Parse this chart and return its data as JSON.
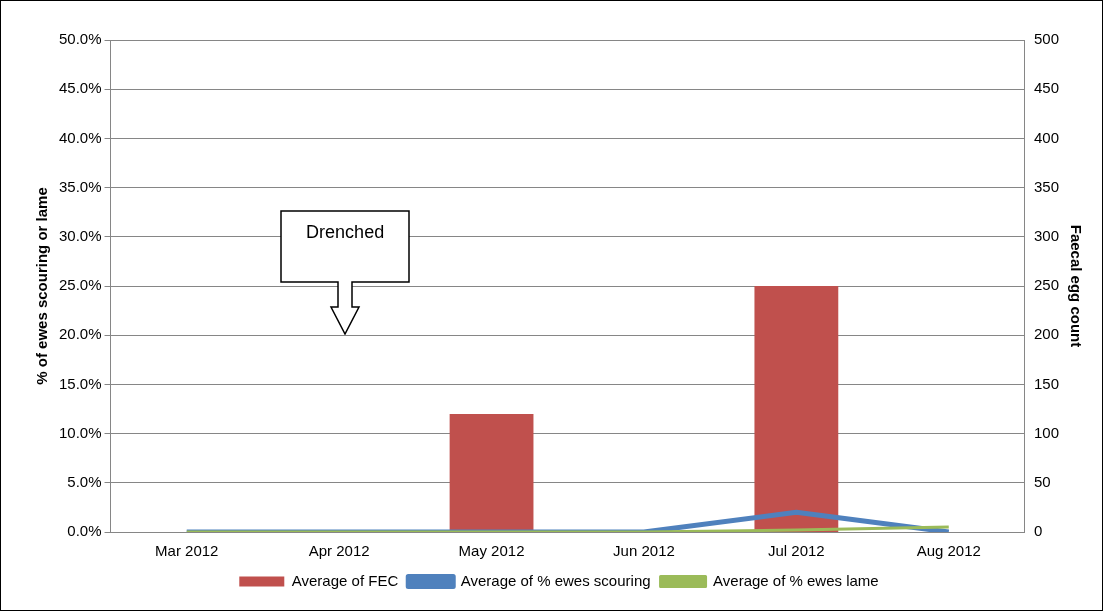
{
  "chart_data": {
    "type": "bar",
    "categories": [
      "Mar 2012",
      "Apr 2012",
      "May 2012",
      "Jun 2012",
      "Jul 2012",
      "Aug 2012"
    ],
    "series": [
      {
        "name": "Average of FEC",
        "axis": "y2",
        "color": "#c0504d",
        "values": [
          0,
          0,
          120,
          0,
          250,
          0
        ]
      },
      {
        "name": "Average of % ewes scouring",
        "type": "line",
        "axis": "y",
        "color": "#4f81bd",
        "values": [
          0,
          0,
          0,
          0,
          2.0,
          0
        ]
      },
      {
        "name": "Average of % ewes lame",
        "type": "line",
        "axis": "y",
        "color": "#9bbb59",
        "values": [
          0,
          0,
          0,
          0,
          0.2,
          0.5
        ]
      }
    ],
    "ylabel": "% of ewes scouring or lame",
    "y2label": "Faecal egg count",
    "ylim": [
      0,
      50
    ],
    "yticks": [
      {
        "value": 0,
        "label": "0.0%"
      },
      {
        "value": 5,
        "label": "5.0%"
      },
      {
        "value": 10,
        "label": "10.0%"
      },
      {
        "value": 15,
        "label": "15.0%"
      },
      {
        "value": 20,
        "label": "20.0%"
      },
      {
        "value": 25,
        "label": "25.0%"
      },
      {
        "value": 30,
        "label": "30.0%"
      },
      {
        "value": 35,
        "label": "35.0%"
      },
      {
        "value": 40,
        "label": "40.0%"
      },
      {
        "value": 45,
        "label": "45.0%"
      },
      {
        "value": 50,
        "label": "50.0%"
      }
    ],
    "y2lim": [
      0,
      500
    ],
    "y2ticks": [
      0,
      50,
      100,
      150,
      200,
      250,
      300,
      350,
      400,
      450,
      500
    ],
    "annotations": [
      "Drenched"
    ],
    "grid": "y",
    "legend": "bottom",
    "marker": "none",
    "line_style": "solid"
  }
}
